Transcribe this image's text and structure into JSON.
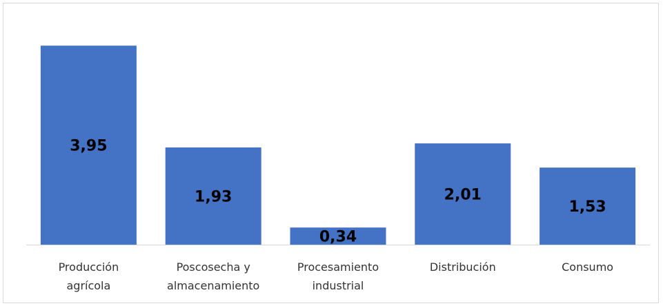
{
  "chart_data": {
    "type": "bar",
    "categories": [
      [
        "Producción",
        "agrícola"
      ],
      [
        "Poscosecha y",
        "almacenamiento"
      ],
      [
        "Procesamiento",
        "industrial"
      ],
      [
        "Distribución"
      ],
      [
        "Consumo"
      ]
    ],
    "values": [
      3.95,
      1.93,
      0.34,
      2.01,
      1.53
    ],
    "value_labels": [
      "3,95",
      "1,93",
      "0,34",
      "2,01",
      "1,53"
    ],
    "title": "",
    "xlabel": "",
    "ylabel": "",
    "ylim": [
      0,
      4.35
    ],
    "grid": false,
    "legend": "none",
    "bar_color": "#4472c4"
  }
}
